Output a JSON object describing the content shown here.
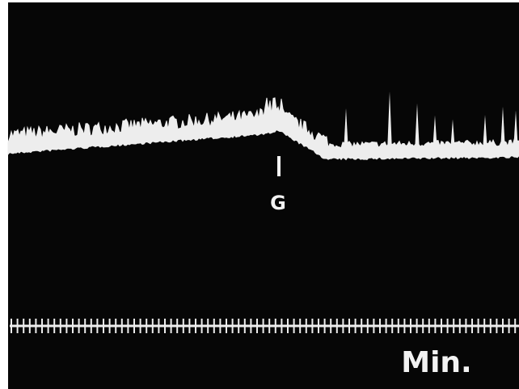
{
  "marker_label": "G",
  "time_scale_label": "Min."
}
